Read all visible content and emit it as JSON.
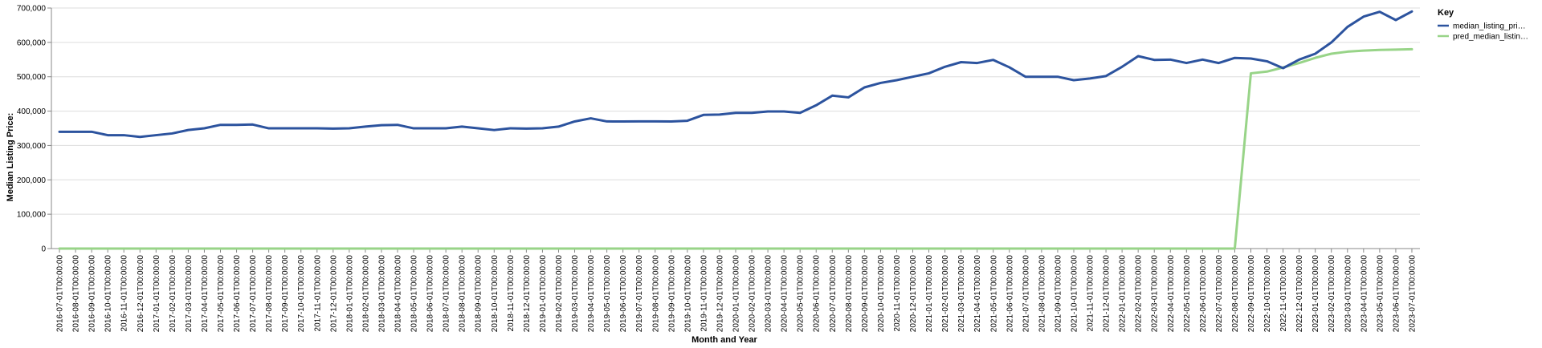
{
  "chart_data": {
    "type": "line",
    "xlabel": "Month and Year",
    "ylabel": "Median Listing Price:",
    "ylim": [
      0,
      700000
    ],
    "y_ticks": [
      0,
      100000,
      200000,
      300000,
      400000,
      500000,
      600000,
      700000
    ],
    "y_tick_labels": [
      "0",
      "100,000",
      "200,000",
      "300,000",
      "400,000",
      "500,000",
      "600,000",
      "700,000"
    ],
    "grid": true,
    "legend_position": "right",
    "legend_title": "Key",
    "x": [
      "2016-07-01T00:00:00",
      "2016-08-01T00:00:00",
      "2016-09-01T00:00:00",
      "2016-10-01T00:00:00",
      "2016-11-01T00:00:00",
      "2016-12-01T00:00:00",
      "2017-01-01T00:00:00",
      "2017-02-01T00:00:00",
      "2017-03-01T00:00:00",
      "2017-04-01T00:00:00",
      "2017-05-01T00:00:00",
      "2017-06-01T00:00:00",
      "2017-07-01T00:00:00",
      "2017-08-01T00:00:00",
      "2017-09-01T00:00:00",
      "2017-10-01T00:00:00",
      "2017-11-01T00:00:00",
      "2017-12-01T00:00:00",
      "2018-01-01T00:00:00",
      "2018-02-01T00:00:00",
      "2018-03-01T00:00:00",
      "2018-04-01T00:00:00",
      "2018-05-01T00:00:00",
      "2018-06-01T00:00:00",
      "2018-07-01T00:00:00",
      "2018-08-01T00:00:00",
      "2018-09-01T00:00:00",
      "2018-10-01T00:00:00",
      "2018-11-01T00:00:00",
      "2018-12-01T00:00:00",
      "2019-01-01T00:00:00",
      "2019-02-01T00:00:00",
      "2019-03-01T00:00:00",
      "2019-04-01T00:00:00",
      "2019-05-01T00:00:00",
      "2019-06-01T00:00:00",
      "2019-07-01T00:00:00",
      "2019-08-01T00:00:00",
      "2019-09-01T00:00:00",
      "2019-10-01T00:00:00",
      "2019-11-01T00:00:00",
      "2019-12-01T00:00:00",
      "2020-01-01T00:00:00",
      "2020-02-01T00:00:00",
      "2020-03-01T00:00:00",
      "2020-04-01T00:00:00",
      "2020-05-01T00:00:00",
      "2020-06-01T00:00:00",
      "2020-07-01T00:00:00",
      "2020-08-01T00:00:00",
      "2020-09-01T00:00:00",
      "2020-10-01T00:00:00",
      "2020-11-01T00:00:00",
      "2020-12-01T00:00:00",
      "2021-01-01T00:00:00",
      "2021-02-01T00:00:00",
      "2021-03-01T00:00:00",
      "2021-04-01T00:00:00",
      "2021-05-01T00:00:00",
      "2021-06-01T00:00:00",
      "2021-07-01T00:00:00",
      "2021-08-01T00:00:00",
      "2021-09-01T00:00:00",
      "2021-10-01T00:00:00",
      "2021-11-01T00:00:00",
      "2021-12-01T00:00:00",
      "2022-01-01T00:00:00",
      "2022-02-01T00:00:00",
      "2022-03-01T00:00:00",
      "2022-04-01T00:00:00",
      "2022-05-01T00:00:00",
      "2022-06-01T00:00:00",
      "2022-07-01T00:00:00",
      "2022-08-01T00:00:00",
      "2022-09-01T00:00:00",
      "2022-10-01T00:00:00",
      "2022-11-01T00:00:00",
      "2022-12-01T00:00:00",
      "2023-01-01T00:00:00",
      "2023-02-01T00:00:00",
      "2023-03-01T00:00:00",
      "2023-04-01T00:00:00",
      "2023-05-01T00:00:00",
      "2023-06-01T00:00:00",
      "2023-07-01T00:00:00"
    ],
    "series": [
      {
        "name": "median_listing_pri…",
        "color": "#2c539e",
        "values": [
          339900,
          339900,
          339900,
          330000,
          330000,
          325000,
          330000,
          335000,
          345000,
          350000,
          360000,
          359900,
          361000,
          349900,
          349900,
          349900,
          349900,
          349000,
          350000,
          355000,
          359000,
          360000,
          349900,
          349900,
          349900,
          355000,
          350000,
          344900,
          350000,
          349000,
          350000,
          354900,
          369900,
          379000,
          370000,
          369900,
          370000,
          370000,
          369900,
          372000,
          389000,
          390000,
          395000,
          395000,
          399000,
          399000,
          394900,
          417000,
          445000,
          440000,
          469000,
          482000,
          490000,
          500000,
          510000,
          529000,
          542500,
          540000,
          549000,
          527500,
          500000,
          499900,
          500000,
          490000,
          495000,
          502000,
          529000,
          560000,
          549000,
          549900,
          540000,
          549900,
          539900,
          554900,
          553000,
          545000,
          525000,
          550000,
          567000,
          599900,
          645000,
          675000,
          689000,
          665000,
          690000
        ]
      },
      {
        "name": "pred_median_listin…",
        "color": "#98d488",
        "values": [
          0,
          0,
          0,
          0,
          0,
          0,
          0,
          0,
          0,
          0,
          0,
          0,
          0,
          0,
          0,
          0,
          0,
          0,
          0,
          0,
          0,
          0,
          0,
          0,
          0,
          0,
          0,
          0,
          0,
          0,
          0,
          0,
          0,
          0,
          0,
          0,
          0,
          0,
          0,
          0,
          0,
          0,
          0,
          0,
          0,
          0,
          0,
          0,
          0,
          0,
          0,
          0,
          0,
          0,
          0,
          0,
          0,
          0,
          0,
          0,
          0,
          0,
          0,
          0,
          0,
          0,
          0,
          0,
          0,
          0,
          0,
          0,
          0,
          0,
          510000,
          515000,
          527000,
          540000,
          555000,
          567000,
          573000,
          576000,
          578000,
          579000,
          580000
        ]
      }
    ]
  }
}
